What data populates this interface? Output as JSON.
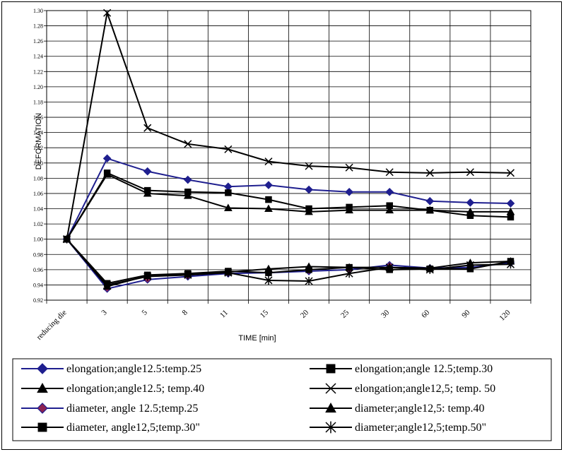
{
  "chart_data": {
    "type": "line",
    "title": "",
    "xlabel": "TIME  [min]",
    "ylabel": "DEFORMATION",
    "categories": [
      "reducing die",
      "3",
      "5",
      "8",
      "11",
      "15",
      "20",
      "25",
      "30",
      "60",
      "90",
      "120"
    ],
    "ylim": [
      0.92,
      1.3
    ],
    "ytick_step": 0.02,
    "yticks": [
      "0.92",
      "0.94",
      "0.96",
      "0.98",
      "1.00",
      "1.02",
      "1.04",
      "1.06",
      "1.08",
      "1.10",
      "1.12",
      "1.14",
      "1.16",
      "1.18",
      "1.20",
      "1.22",
      "1.24",
      "1.26",
      "1.28",
      "1.30"
    ],
    "grid": true,
    "legend_position": "bottom",
    "series": [
      {
        "name": "elongation;angle12.5:temp.25",
        "marker": "diamond",
        "color": "#1f1f8f",
        "fill": "#1f1f8f",
        "values": [
          1.0,
          1.106,
          1.089,
          1.078,
          1.069,
          1.071,
          1.065,
          1.062,
          1.062,
          1.05,
          1.048,
          1.047
        ]
      },
      {
        "name": "elongation;angle 12.5;temp.30",
        "marker": "square",
        "color": "#000000",
        "fill": "#000000",
        "values": [
          1.0,
          1.087,
          1.064,
          1.062,
          1.061,
          1.052,
          1.04,
          1.042,
          1.044,
          1.038,
          1.031,
          1.029
        ]
      },
      {
        "name": "elongation;angle12.5; temp.40",
        "marker": "triangle",
        "color": "#000000",
        "fill": "#000000",
        "values": [
          1.0,
          1.085,
          1.06,
          1.057,
          1.041,
          1.04,
          1.036,
          1.038,
          1.038,
          1.038,
          1.036,
          1.036
        ]
      },
      {
        "name": "elongation;angle12,5; temp. 50",
        "marker": "x",
        "color": "#000000",
        "fill": "none",
        "values": [
          1.0,
          1.297,
          1.146,
          1.125,
          1.118,
          1.102,
          1.096,
          1.094,
          1.088,
          1.087,
          1.088,
          1.087
        ]
      },
      {
        "name": "diameter, angle 12.5;temp.25",
        "marker": "diamond",
        "color": "#1f1f8f",
        "fill": "#8b2252",
        "values": [
          1.0,
          0.935,
          0.947,
          0.951,
          0.955,
          0.956,
          0.958,
          0.96,
          0.966,
          0.962,
          0.963,
          0.969
        ]
      },
      {
        "name": "diameter;angle12,5: temp.40",
        "marker": "triangle",
        "color": "#000000",
        "fill": "#000000",
        "values": [
          1.0,
          0.938,
          0.952,
          0.954,
          0.957,
          0.961,
          0.964,
          0.963,
          0.963,
          0.962,
          0.969,
          0.971
        ]
      },
      {
        "name": "diameter, angle12,5;temp.30\"",
        "marker": "square",
        "color": "#000000",
        "fill": "#000000",
        "values": [
          1.0,
          0.942,
          0.953,
          0.955,
          0.958,
          0.956,
          0.96,
          0.963,
          0.96,
          0.961,
          0.961,
          0.971
        ]
      },
      {
        "name": "diameter;angle12,5;temp.50\"",
        "marker": "star",
        "color": "#000000",
        "fill": "none",
        "values": [
          1.0,
          0.94,
          0.951,
          0.953,
          0.956,
          0.946,
          0.945,
          0.955,
          0.963,
          0.96,
          0.966,
          0.967
        ]
      }
    ]
  },
  "legend": {
    "rows": [
      [
        "elongation;angle12.5:temp.25",
        "elongation;angle 12.5;temp.30"
      ],
      [
        "elongation;angle12.5; temp.40",
        "elongation;angle12,5; temp. 50"
      ],
      [
        "diameter, angle 12.5;temp.25",
        "diameter;angle12,5: temp.40"
      ],
      [
        "diameter, angle12,5;temp.30\"",
        "diameter;angle12,5;temp.50\""
      ]
    ]
  }
}
